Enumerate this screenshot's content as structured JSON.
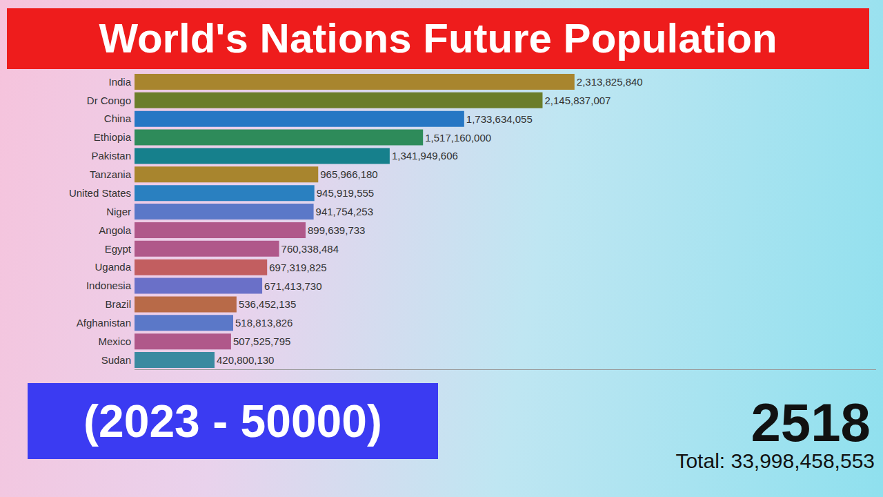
{
  "chart_data": {
    "type": "bar",
    "title": "World's Nations Future Population",
    "subtitle": "(2023 - 50000)",
    "annotations": [
      "2518",
      "Total: 33,998,458,553"
    ],
    "orientation": "horizontal",
    "categories": [
      "India",
      "Dr Congo",
      "China",
      "Ethiopia",
      "Pakistan",
      "Tanzania",
      "United States",
      "Niger",
      "Angola",
      "Egypt",
      "Uganda",
      "Indonesia",
      "Brazil",
      "Afghanistan",
      "Mexico",
      "Sudan"
    ],
    "values": [
      2313825840,
      2145837007,
      1733634055,
      1517160000,
      1341949606,
      965966180,
      945919555,
      941754253,
      899639733,
      760338484,
      697319825,
      671413730,
      536452135,
      518813826,
      507525795,
      420800130
    ],
    "value_labels": [
      "2,313,825,840",
      "2,145,837,007",
      "1,733,634,055",
      "1,517,160,000",
      "1,341,949,606",
      "965,966,180",
      "945,919,555",
      "941,754,253",
      "899,639,733",
      "760,338,484",
      "697,319,825",
      "671,413,730",
      "536,452,135",
      "518,813,826",
      "507,525,795",
      "420,800,130"
    ],
    "colors": [
      "#a8852e",
      "#6b7d2a",
      "#2677c4",
      "#2e8b5a",
      "#16808c",
      "#a8852e",
      "#2a80c0",
      "#5b78c8",
      "#b0588a",
      "#b0588a",
      "#c25e60",
      "#6a70c8",
      "#b86a48",
      "#5b78c8",
      "#b0588a",
      "#3a8aa0"
    ],
    "xlim": [
      0,
      3900000000
    ],
    "xticks": [],
    "grid": false,
    "data_labels": true,
    "tick_labels": "y"
  }
}
